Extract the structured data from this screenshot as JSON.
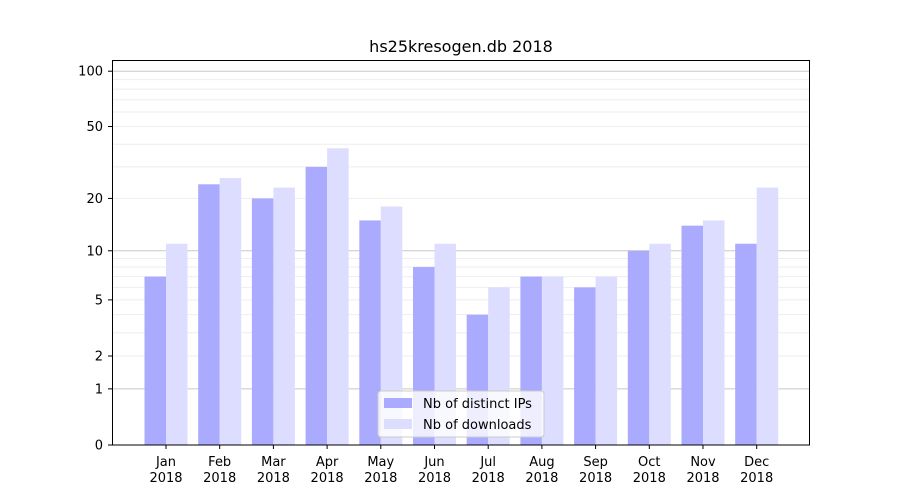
{
  "chart_data": {
    "type": "bar",
    "title": "hs25kresogen.db 2018",
    "xlabel": "",
    "ylabel": "",
    "yscale": "symlog (log10(v+1))",
    "ylim": [
      0,
      110
    ],
    "categories": [
      "Jan\n2018",
      "Feb\n2018",
      "Mar\n2018",
      "Apr\n2018",
      "May\n2018",
      "Jun\n2018",
      "Jul\n2018",
      "Aug\n2018",
      "Sep\n2018",
      "Oct\n2018",
      "Nov\n2018",
      "Dec\n2018"
    ],
    "yticks": [
      0,
      1,
      2,
      5,
      10,
      20,
      50,
      100
    ],
    "minor_ticks": [
      3,
      4,
      6,
      7,
      8,
      9,
      30,
      40,
      60,
      70,
      80,
      90
    ],
    "series": [
      {
        "name": "Nb of distinct IPs",
        "color": "#aaaaff",
        "values": [
          7,
          24,
          20,
          30,
          15,
          8,
          4,
          7,
          6,
          10,
          14,
          11
        ]
      },
      {
        "name": "Nb of downloads",
        "color": "#ddddff",
        "values": [
          11,
          26,
          23,
          38,
          18,
          11,
          6,
          7,
          7,
          11,
          15,
          23
        ]
      }
    ],
    "legend": "bottom-center",
    "grid": true
  }
}
